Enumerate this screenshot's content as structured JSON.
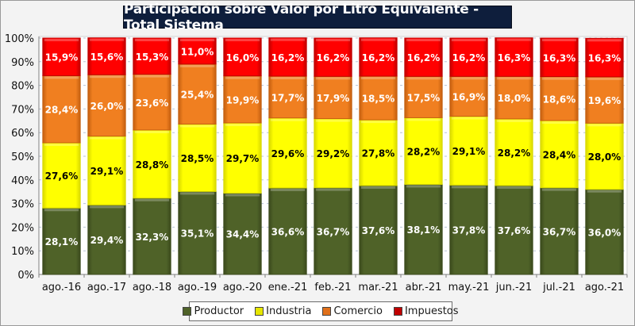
{
  "chart_data": {
    "type": "bar",
    "stacked": true,
    "title": "Participación sobre Valor por Litro Equivalente - Total Sistema",
    "xlabel": "",
    "ylabel": "",
    "ylim": [
      0,
      100
    ],
    "yticks": [
      "0%",
      "10%",
      "20%",
      "30%",
      "40%",
      "50%",
      "60%",
      "70%",
      "80%",
      "90%",
      "100%"
    ],
    "grid": true,
    "legend_position": "bottom",
    "categories": [
      "ago.-16",
      "ago.-17",
      "ago.-18",
      "ago.-19",
      "ago.-20",
      "ene.-21",
      "feb.-21",
      "mar.-21",
      "abr.-21",
      "may.-21",
      "jun.-21",
      "jul.-21",
      "ago.-21"
    ],
    "series": [
      {
        "name": "Productor",
        "color": "#4f6228",
        "label_color": "#ffffff",
        "values": [
          28.1,
          29.4,
          32.3,
          35.1,
          34.4,
          36.6,
          36.7,
          37.6,
          38.1,
          37.8,
          37.6,
          36.7,
          36.0
        ],
        "labels": [
          "28,1%",
          "29,4%",
          "32,3%",
          "35,1%",
          "34,4%",
          "36,6%",
          "36,7%",
          "37,6%",
          "38,1%",
          "37,8%",
          "37,6%",
          "36,7%",
          "36,0%"
        ]
      },
      {
        "name": "Industria",
        "color": "#ffff00",
        "label_color": "#000000",
        "values": [
          27.6,
          29.1,
          28.8,
          28.5,
          29.7,
          29.6,
          29.2,
          27.8,
          28.2,
          29.1,
          28.2,
          28.4,
          28.0
        ],
        "labels": [
          "27,6%",
          "29,1%",
          "28,8%",
          "28,5%",
          "29,7%",
          "29,6%",
          "29,2%",
          "27,8%",
          "28,2%",
          "29,1%",
          "28,2%",
          "28,4%",
          "28,0%"
        ]
      },
      {
        "name": "Comercio",
        "color": "#f07f20",
        "label_color": "#ffffff",
        "values": [
          28.4,
          26.0,
          23.6,
          25.4,
          19.9,
          17.7,
          17.9,
          18.5,
          17.5,
          16.9,
          18.0,
          18.6,
          19.6
        ],
        "labels": [
          "28,4%",
          "26,0%",
          "23,6%",
          "25,4%",
          "19,9%",
          "17,7%",
          "17,9%",
          "18,5%",
          "17,5%",
          "16,9%",
          "18,0%",
          "18,6%",
          "19,6%"
        ]
      },
      {
        "name": "Impuestos",
        "color": "#ff0000",
        "label_color": "#ffffff",
        "values": [
          15.9,
          15.6,
          15.3,
          11.0,
          16.0,
          16.2,
          16.2,
          16.2,
          16.2,
          16.2,
          16.3,
          16.3,
          16.3
        ],
        "labels": [
          "15,9%",
          "15,6%",
          "15,3%",
          "11,0%",
          "16,0%",
          "16,2%",
          "16,2%",
          "16,2%",
          "16,2%",
          "16,2%",
          "16,3%",
          "16,3%",
          "16,3%"
        ]
      }
    ]
  },
  "legend": {
    "items": [
      {
        "label": "Productor",
        "color": "#4f6228"
      },
      {
        "label": "Industria",
        "color": "#ffff00"
      },
      {
        "label": "Comercio",
        "color": "#f07f20"
      },
      {
        "label": "Impuestos",
        "color": "#c00000"
      }
    ]
  }
}
